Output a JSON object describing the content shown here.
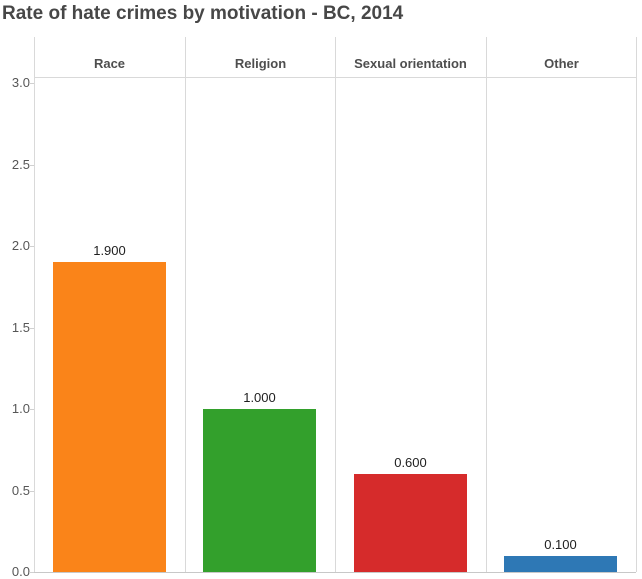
{
  "page": {
    "title": "Rate of hate crimes by motivation - BC, 2014"
  },
  "chart_data": {
    "type": "bar",
    "title": "Rate of hate crimes by motivation - BC, 2014",
    "categories": [
      "Race",
      "Religion",
      "Sexual orientation",
      "Other"
    ],
    "values": [
      1.9,
      1.0,
      0.6,
      0.1
    ],
    "value_labels": [
      "1.900",
      "1.000",
      "0.600",
      "0.100"
    ],
    "bar_colors": [
      "#fa8419",
      "#33a02c",
      "#d62b2b",
      "#2e78b5"
    ],
    "xlabel": "",
    "ylabel": "",
    "ylim": [
      0,
      3.0
    ],
    "ytick_labels": [
      "3.0",
      "2.5",
      "2.0",
      "1.5",
      "1.0",
      "0.5",
      "0.0"
    ],
    "ytick_values": [
      3.0,
      2.5,
      2.0,
      1.5,
      1.0,
      0.5,
      0.0
    ],
    "grid": "vertical panel dividers only, no horizontal gridlines",
    "legend": "none",
    "colors": {
      "title_text": "#474747",
      "header_text": "#4e4e4e",
      "tick_text": "#565656",
      "value_label_text": "#1e1e1e",
      "grid_line": "#d9d9d9",
      "baseline": "#c8c8c8",
      "background": "#ffffff"
    }
  }
}
